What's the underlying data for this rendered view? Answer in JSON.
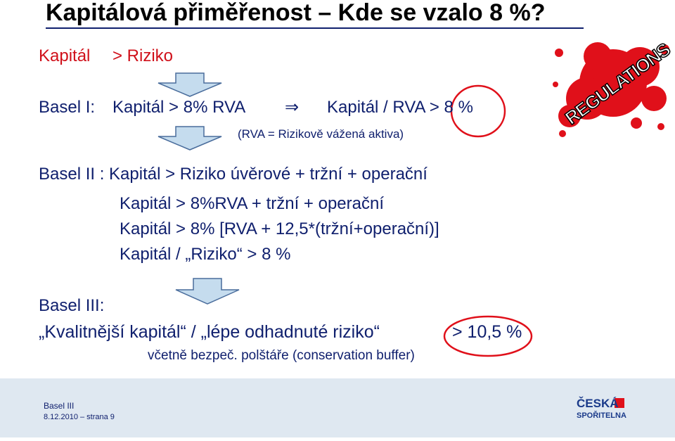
{
  "title": "Kapitálová přiměřenost – Kde se vzalo 8 %?",
  "intro": [
    "Kapitál",
    "> Riziko"
  ],
  "basel1": {
    "label": "Basel I:",
    "left": "Kapitál > 8% RVA",
    "implies": "⇒",
    "right": "Kapitál / RVA > 8 %",
    "note": "(RVA = Rizikově vážená aktiva)"
  },
  "basel2": {
    "lines": [
      "Basel II : Kapitál > Riziko úvěrové + tržní + operační",
      "Kapitál > 8%RVA + tržní + operační",
      "Kapitál > 8% [RVA + 12,5*(tržní+operační)]",
      "Kapitál / „Riziko“ > 8 %"
    ]
  },
  "basel3": {
    "label": "Basel III:",
    "line": "„Kvalitnější kapitál“ / „lépe odhadnuté riziko“",
    "ratio": "> 10,5 %",
    "note": "včetně bezpeč. polštáře (conservation buffer)"
  },
  "badge": "REGULATIONS",
  "footer": {
    "topic": "Basel III",
    "date": "8.12.2010 – strana 9",
    "logo": [
      "ČESKÁ",
      "SPOŘITELNA"
    ]
  }
}
